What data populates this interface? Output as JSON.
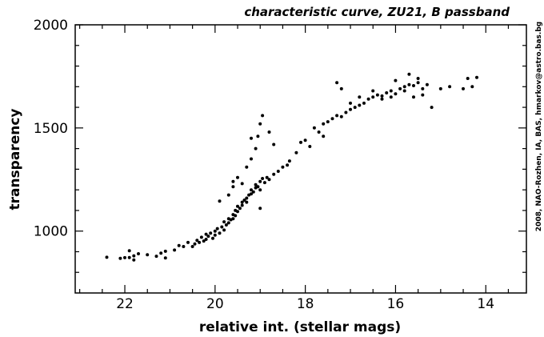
{
  "chart_data": {
    "type": "scatter",
    "title": "characteristic curve, ZU21, B passband",
    "xlabel": "relative int. (stellar mags)",
    "ylabel": "transparency",
    "credit": "2008, NAO-Rozhen, IA, BAS, hmarkov@astro.bas.bg",
    "xlim": [
      23.1,
      13.1
    ],
    "ylim": [
      700,
      2000
    ],
    "x_reversed": true,
    "xticks": [
      22,
      20,
      18,
      16,
      14
    ],
    "yticks": [
      1000,
      1500,
      2000
    ],
    "grid": false,
    "marker_color": "#000000",
    "points": [
      [
        22.4,
        873
      ],
      [
        22.1,
        868
      ],
      [
        22.0,
        871
      ],
      [
        21.9,
        872
      ],
      [
        21.9,
        905
      ],
      [
        21.8,
        880
      ],
      [
        21.8,
        860
      ],
      [
        21.7,
        890
      ],
      [
        21.5,
        885
      ],
      [
        21.3,
        878
      ],
      [
        21.2,
        893
      ],
      [
        21.1,
        870
      ],
      [
        21.1,
        902
      ],
      [
        20.9,
        908
      ],
      [
        20.8,
        930
      ],
      [
        20.7,
        925
      ],
      [
        20.6,
        945
      ],
      [
        20.5,
        925
      ],
      [
        20.45,
        938
      ],
      [
        20.4,
        955
      ],
      [
        20.35,
        945
      ],
      [
        20.3,
        970
      ],
      [
        20.25,
        952
      ],
      [
        20.2,
        985
      ],
      [
        20.2,
        960
      ],
      [
        20.15,
        975
      ],
      [
        20.1,
        990
      ],
      [
        20.05,
        965
      ],
      [
        20.0,
        1000
      ],
      [
        20.0,
        980
      ],
      [
        19.95,
        1012
      ],
      [
        19.9,
        990
      ],
      [
        19.85,
        1020
      ],
      [
        19.8,
        1005
      ],
      [
        19.8,
        1045
      ],
      [
        19.75,
        1030
      ],
      [
        19.7,
        1060
      ],
      [
        19.7,
        1040
      ],
      [
        19.65,
        1055
      ],
      [
        19.6,
        1080
      ],
      [
        19.6,
        1060
      ],
      [
        19.55,
        1100
      ],
      [
        19.55,
        1075
      ],
      [
        19.5,
        1095
      ],
      [
        19.5,
        1120
      ],
      [
        19.45,
        1110
      ],
      [
        19.4,
        1140
      ],
      [
        19.4,
        1125
      ],
      [
        19.35,
        1150
      ],
      [
        19.3,
        1160
      ],
      [
        19.3,
        1140
      ],
      [
        19.25,
        1175
      ],
      [
        19.2,
        1200
      ],
      [
        19.2,
        1180
      ],
      [
        19.15,
        1190
      ],
      [
        19.1,
        1210
      ],
      [
        19.1,
        1225
      ],
      [
        19.05,
        1215
      ],
      [
        19.0,
        1240
      ],
      [
        19.0,
        1110
      ],
      [
        19.0,
        1200
      ],
      [
        18.95,
        1255
      ],
      [
        18.9,
        1235
      ],
      [
        18.85,
        1260
      ],
      [
        18.8,
        1250
      ],
      [
        18.7,
        1275
      ],
      [
        18.6,
        1290
      ],
      [
        18.5,
        1310
      ],
      [
        18.4,
        1320
      ],
      [
        18.35,
        1340
      ],
      [
        19.9,
        1145
      ],
      [
        19.7,
        1175
      ],
      [
        19.6,
        1215
      ],
      [
        19.5,
        1260
      ],
      [
        19.3,
        1310
      ],
      [
        19.2,
        1350
      ],
      [
        19.1,
        1400
      ],
      [
        19.2,
        1450
      ],
      [
        19.05,
        1460
      ],
      [
        18.95,
        1560
      ],
      [
        19.0,
        1520
      ],
      [
        18.8,
        1480
      ],
      [
        19.6,
        1240
      ],
      [
        19.4,
        1230
      ],
      [
        18.7,
        1420
      ],
      [
        18.2,
        1380
      ],
      [
        18.1,
        1430
      ],
      [
        18.0,
        1440
      ],
      [
        17.9,
        1410
      ],
      [
        17.8,
        1500
      ],
      [
        17.7,
        1480
      ],
      [
        17.6,
        1520
      ],
      [
        17.5,
        1530
      ],
      [
        17.4,
        1545
      ],
      [
        17.3,
        1560
      ],
      [
        17.2,
        1555
      ],
      [
        17.1,
        1575
      ],
      [
        17.0,
        1590
      ],
      [
        16.9,
        1600
      ],
      [
        16.8,
        1610
      ],
      [
        16.7,
        1620
      ],
      [
        16.6,
        1640
      ],
      [
        16.5,
        1650
      ],
      [
        16.4,
        1660
      ],
      [
        16.3,
        1655
      ],
      [
        16.2,
        1670
      ],
      [
        16.1,
        1680
      ],
      [
        16.0,
        1665
      ],
      [
        15.9,
        1690
      ],
      [
        15.8,
        1700
      ],
      [
        15.7,
        1710
      ],
      [
        15.6,
        1705
      ],
      [
        15.5,
        1720
      ],
      [
        15.4,
        1690
      ],
      [
        15.3,
        1710
      ],
      [
        17.3,
        1720
      ],
      [
        17.2,
        1690
      ],
      [
        16.5,
        1680
      ],
      [
        16.0,
        1730
      ],
      [
        15.7,
        1760
      ],
      [
        15.5,
        1740
      ],
      [
        15.6,
        1650
      ],
      [
        15.4,
        1660
      ],
      [
        15.2,
        1600
      ],
      [
        15.0,
        1690
      ],
      [
        14.8,
        1700
      ],
      [
        14.5,
        1690
      ],
      [
        14.4,
        1740
      ],
      [
        14.3,
        1700
      ],
      [
        14.2,
        1745
      ],
      [
        17.6,
        1460
      ],
      [
        17.0,
        1620
      ],
      [
        16.8,
        1650
      ],
      [
        16.3,
        1640
      ],
      [
        16.1,
        1650
      ],
      [
        15.8,
        1680
      ]
    ]
  }
}
